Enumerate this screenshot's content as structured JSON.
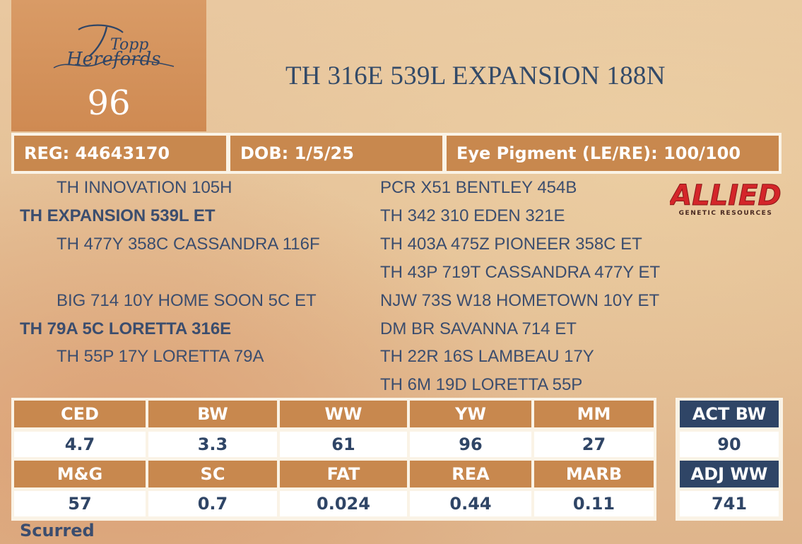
{
  "logo": {
    "text_line1": "Topp",
    "text_line2": "Herefords"
  },
  "lot_number": "96",
  "title": "TH 316E 539L EXPANSION 188N",
  "info": {
    "reg": "REG: 44643170",
    "dob": "DOB: 1/5/25",
    "eye_pigment": "Eye Pigment (LE/RE): 100/100"
  },
  "pedigree": {
    "sire_sire": "TH INNOVATION 105H",
    "sire": "TH EXPANSION 539L ET",
    "sire_dam": "TH 477Y 358C CASSANDRA 116F",
    "dam_sire": "BIG 714 10Y HOME SOON 5C ET",
    "dam": "TH 79A 5C LORETTA 316E",
    "dam_dam": "TH 55P 17Y LORETTA 79A",
    "g1": "PCR X51 BENTLEY 454B",
    "g2": "TH 342 310 EDEN 321E",
    "g3": "TH 403A 475Z PIONEER 358C ET",
    "g4": "TH 43P 719T CASSANDRA 477Y ET",
    "g5": "NJW 73S W18 HOMETOWN 10Y ET",
    "g6": "DM BR SAVANNA 714 ET",
    "g7": "TH 22R 16S LAMBEAU 17Y",
    "g8": "TH 6M 19D LORETTA 55P"
  },
  "sponsor_logo": {
    "name": "ALLIED",
    "tagline": "GENETIC RESOURCES"
  },
  "epds": {
    "row1": {
      "headers": [
        "CED",
        "BW",
        "WW",
        "YW",
        "MM"
      ],
      "values": [
        "4.7",
        "3.3",
        "61",
        "96",
        "27"
      ]
    },
    "row2": {
      "headers": [
        "M&G",
        "SC",
        "FAT",
        "REA",
        "MARB"
      ],
      "values": [
        "57",
        "0.7",
        "0.024",
        "0.44",
        "0.11"
      ]
    }
  },
  "actuals": {
    "act_bw_label": "ACT BW",
    "act_bw": "90",
    "adj_ww_label": "ADJ WW",
    "adj_ww": "741"
  },
  "footer_note": "Scurred",
  "colors": {
    "accent": "#c8884e",
    "navy": "#2f4566",
    "text": "#3b4d6e",
    "logo_bg": "#d99b66",
    "sponsor_red": "#d4262a"
  }
}
